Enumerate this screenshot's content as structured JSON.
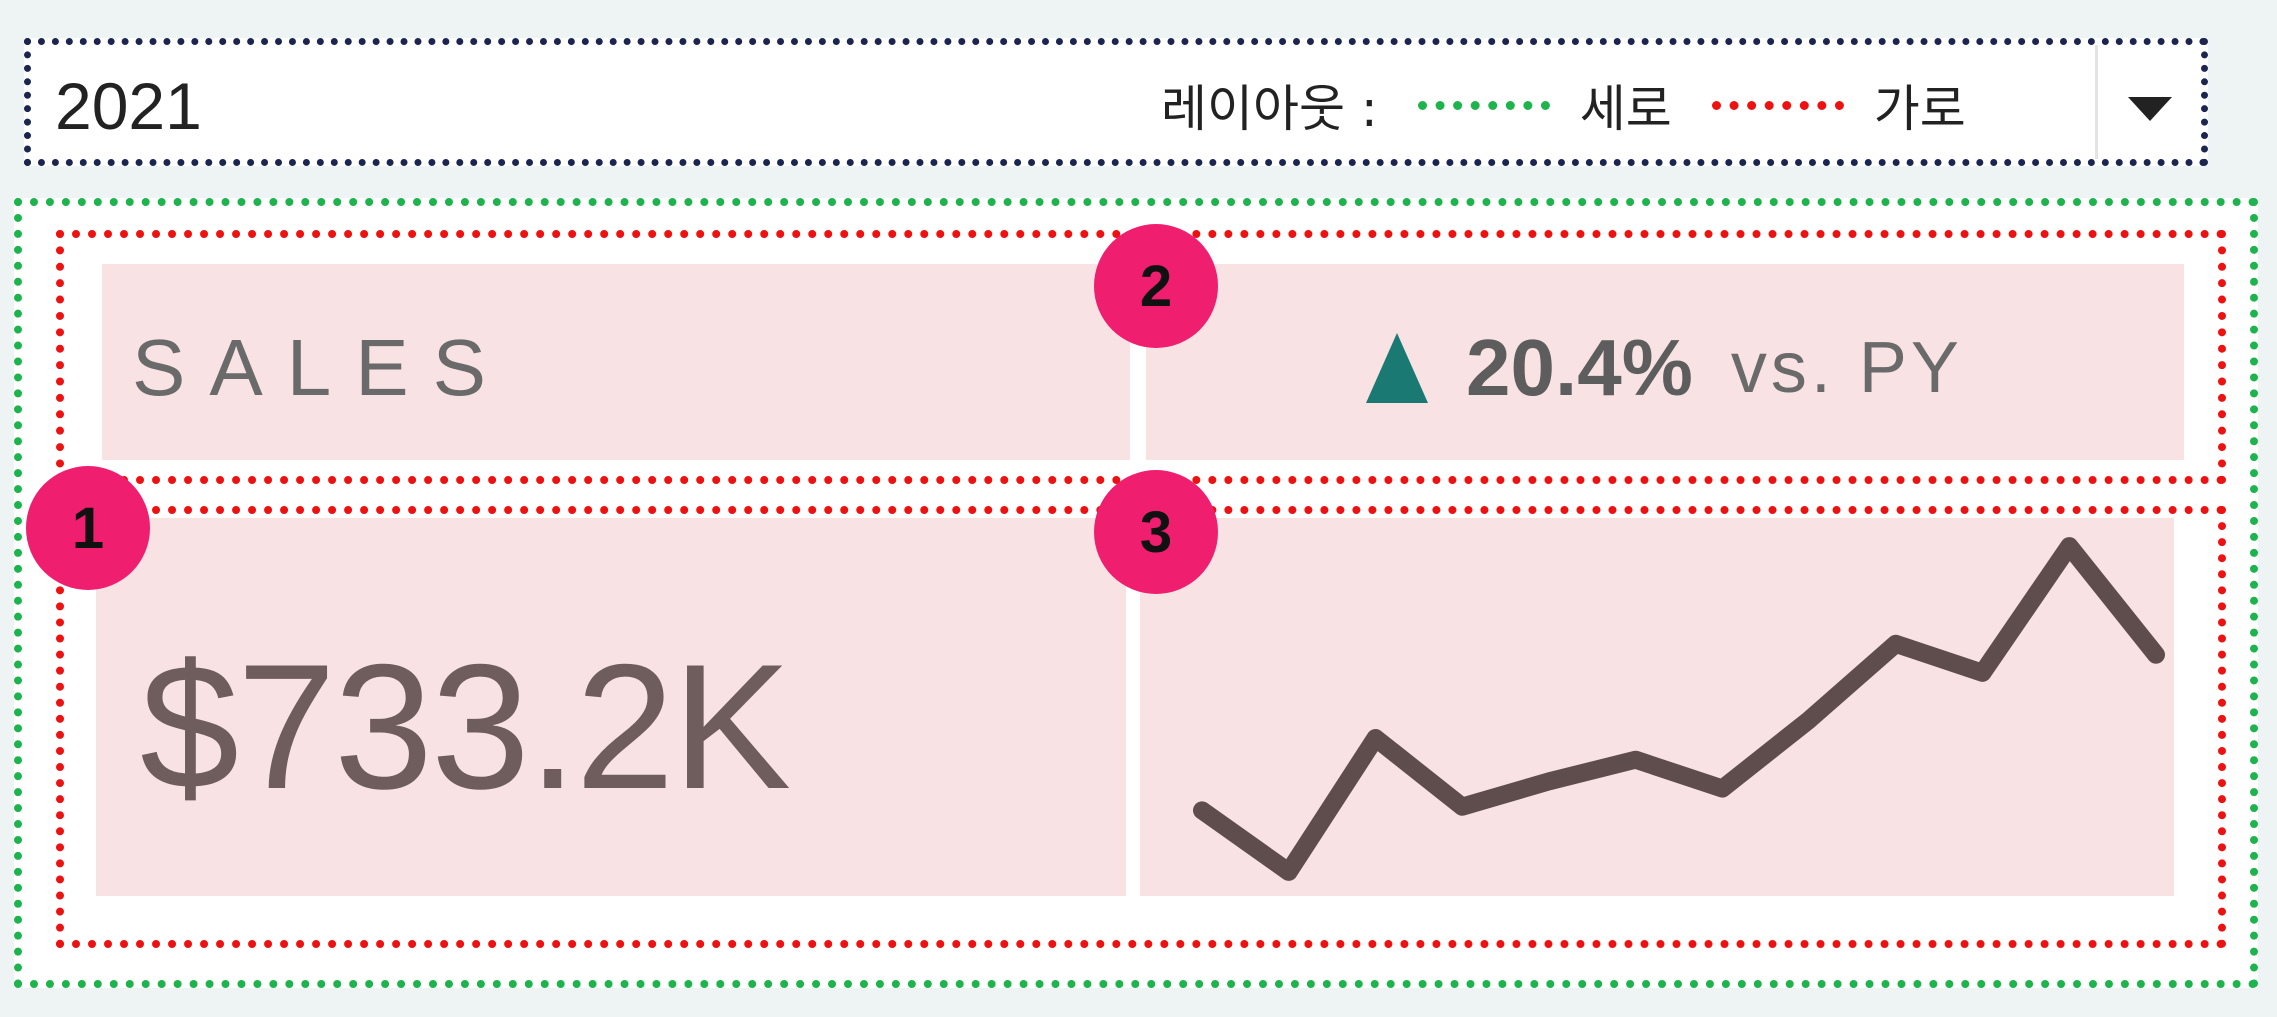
{
  "filter": {
    "selected_value": "2021"
  },
  "legend": {
    "label": "레이아웃 :",
    "vertical_label": "세로",
    "horizontal_label": "가로",
    "colors": {
      "vertical": "#1db34d",
      "horizontal": "#ee1111",
      "filter_border": "#1b2550"
    }
  },
  "kpi": {
    "title": "SALES",
    "change_percent": "20.4%",
    "change_suffix": "vs. PY",
    "change_direction": "up",
    "value": "$733.2K",
    "accent": "#1a7a73",
    "tile_color": "#f8e2e3"
  },
  "badges": [
    "1",
    "2",
    "3"
  ],
  "chart_data": {
    "type": "line",
    "x": [
      1,
      2,
      3,
      4,
      5,
      6,
      7,
      8,
      9,
      10,
      11,
      12
    ],
    "series": [
      {
        "values": [
          22,
          5,
          42,
          23,
          30,
          36,
          28,
          47,
          68,
          60,
          95,
          65
        ]
      }
    ],
    "ylim": [
      0,
      100
    ],
    "grid": false,
    "line_color": "#5e4d4c"
  }
}
